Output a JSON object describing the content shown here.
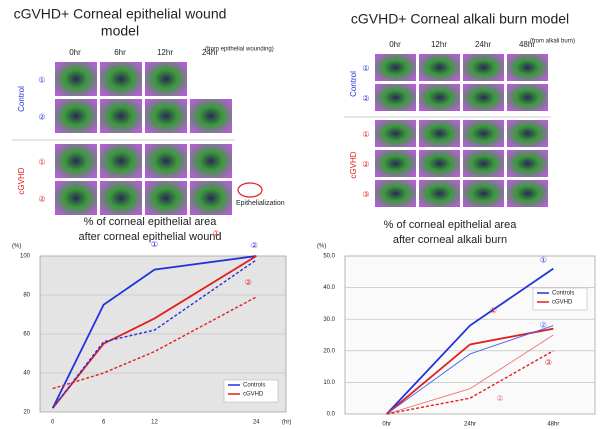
{
  "panels": [
    {
      "title": [
        "cGVHD+ Corneal epithelial wound",
        "model"
      ],
      "columns": [
        "0hr",
        "6hr",
        "12hr",
        "24hr"
      ],
      "note": "(from epithelial wounding)",
      "groups": [
        {
          "label": "Control",
          "rows": [
            "①",
            "②"
          ]
        },
        {
          "label": "cGVHD",
          "rows": [
            "①",
            "②"
          ]
        }
      ],
      "marker_label": "Epithelialization"
    },
    {
      "title": [
        "cGVHD+ Corneal alkali burn model"
      ],
      "columns": [
        "0hr",
        "12hr",
        "24hr",
        "48hr"
      ],
      "note": "(from alkali burn)",
      "groups": [
        {
          "label": "Control",
          "rows": [
            "①",
            "②"
          ]
        },
        {
          "label": "cGVHD",
          "rows": [
            "①",
            "②",
            "③"
          ]
        }
      ]
    }
  ],
  "chart_data": [
    {
      "type": "line",
      "title": [
        "% of corneal epithelial area",
        "after corneal epithelial wound"
      ],
      "ylabel": "(%)",
      "xlabel": "(hr)",
      "x": [
        0,
        6,
        12,
        24
      ],
      "xticks": [
        0,
        6,
        12,
        24
      ],
      "xlim": [
        -1.5,
        27.5
      ],
      "ylim": [
        20,
        100
      ],
      "yticks": [
        20,
        40,
        60,
        80,
        100
      ],
      "grid": true,
      "legend": "bottom-right",
      "series": [
        {
          "name": "Controls",
          "annotation": "①",
          "color": "#2233dd",
          "values": [
            22,
            75,
            93,
            100
          ]
        },
        {
          "name": "cGVHD",
          "annotation": "①",
          "color": "#e02020",
          "values": [
            22,
            55,
            68,
            100
          ]
        },
        {
          "annotation": "②",
          "color": "#2233dd",
          "dash": true,
          "values": [
            22,
            56,
            62,
            98
          ]
        },
        {
          "annotation": "②",
          "color": "#e02020",
          "dash": true,
          "values": [
            32,
            40,
            51,
            79
          ]
        }
      ]
    },
    {
      "type": "line",
      "title": [
        "% of corneal epithelial area",
        "after corneal alkali burn"
      ],
      "ylabel": "(%)",
      "categories": [
        "0hr",
        "24hr",
        "48hr"
      ],
      "ylim": [
        0,
        50
      ],
      "yticks": [
        {
          "value": 0,
          "label": "0.0"
        },
        {
          "value": 10,
          "label": "10.0"
        },
        {
          "value": 20,
          "label": "20.0"
        },
        {
          "value": 30,
          "label": "30.0"
        },
        {
          "value": 40,
          "label": "40.0"
        },
        {
          "value": 50,
          "label": "50.0"
        }
      ],
      "grid": true,
      "legend": "top-right",
      "series": [
        {
          "name": "Controls",
          "annotation": "①",
          "color": "#2233dd",
          "values": [
            0,
            28,
            46
          ]
        },
        {
          "name": "cGVHD",
          "annotation": "①",
          "color": "#e02020",
          "values": [
            0,
            22,
            27
          ]
        },
        {
          "annotation": "②",
          "color": "#4466ee",
          "thin": true,
          "values": [
            0,
            19,
            28
          ]
        },
        {
          "annotation": "②",
          "color": "#f07070",
          "thin": true,
          "values": [
            0,
            8,
            25
          ]
        },
        {
          "annotation": "③",
          "color": "#e02020",
          "dash": true,
          "values": [
            0,
            5,
            20
          ]
        }
      ]
    }
  ]
}
